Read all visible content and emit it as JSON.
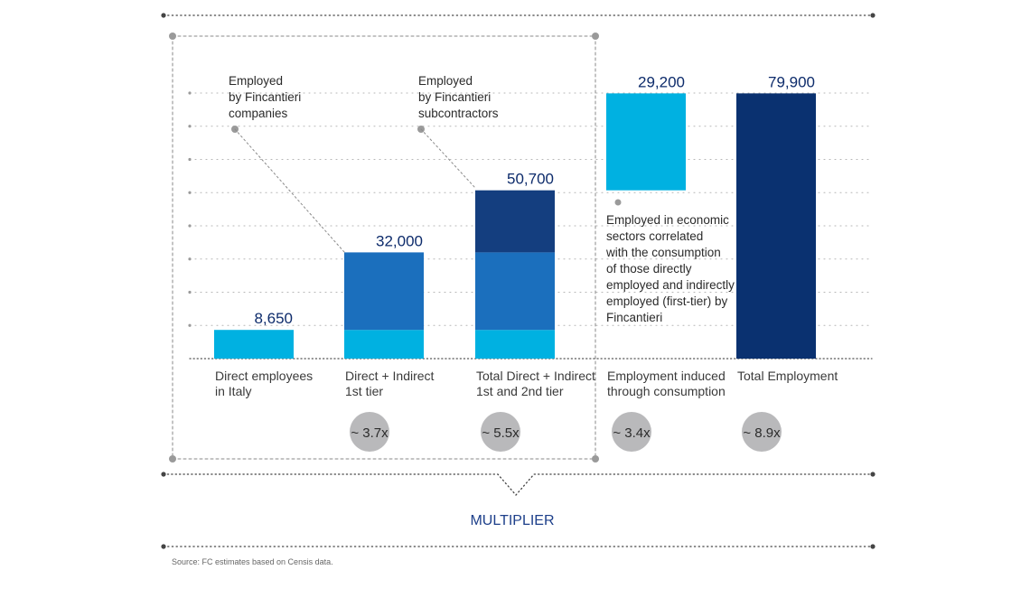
{
  "chart_data": {
    "type": "bar",
    "categories": [
      [
        "Direct employees",
        "in Italy"
      ],
      [
        "Direct + Indirect",
        "1st tier"
      ],
      [
        "Total Direct + Indirect",
        "1st and 2nd tier"
      ],
      [
        "Employment induced",
        "through consumption"
      ],
      [
        "Total Employment"
      ]
    ],
    "values": [
      8650,
      32000,
      50700,
      29200,
      79900
    ],
    "value_labels": [
      "8,650",
      "32,000",
      "50,700",
      "29,200",
      "79,900"
    ],
    "stacked_segments": [
      [
        8650
      ],
      [
        8650,
        23350
      ],
      [
        8650,
        23350,
        18700
      ],
      [
        29200
      ],
      [
        79900
      ]
    ],
    "float_base": [
      0,
      0,
      0,
      50700,
      0
    ],
    "multipliers": [
      "",
      "~ 3.7x",
      "~ 5.5x",
      "~ 3.4x",
      "~ 8.9x"
    ],
    "annotations": [
      [
        "Employed",
        "by Fincantieri",
        "companies"
      ],
      [
        "Employed",
        "by Fincantieri",
        "subcontractors"
      ],
      [
        "Employed in economic",
        "sectors correlated",
        "with the consumption",
        "of those directly",
        "employed and indirectly",
        "employed (first-tier) by",
        "Fincantieri"
      ]
    ],
    "multiplier_title": "MULTIPLIER",
    "source": "Source: FC estimates based on Censis data.",
    "ylim": [
      0,
      80000
    ],
    "grid": true,
    "colors": {
      "light": "#00b1e1",
      "medium": "#1b6fbd",
      "dark": "#143e7f",
      "darkest": "#0a3170",
      "circle": "#b9b9bb",
      "dots": "#5a5a5a"
    }
  }
}
